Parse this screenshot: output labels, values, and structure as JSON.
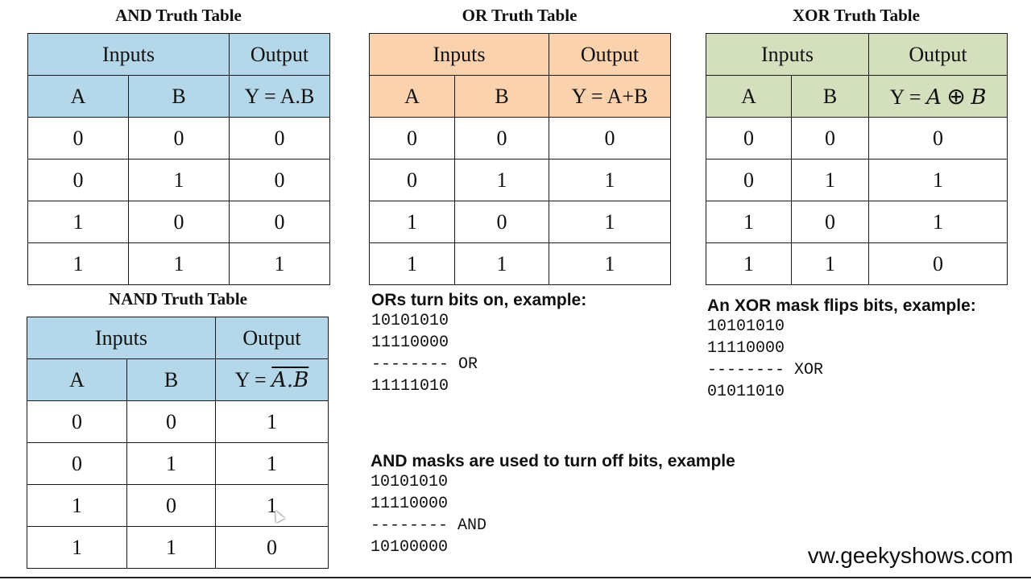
{
  "and_table": {
    "title": "AND Truth Table",
    "inputs_label": "Inputs",
    "output_label": "Output",
    "col_a": "A",
    "col_b": "B",
    "col_y": "Y = A.B",
    "rows": [
      [
        "0",
        "0",
        "0"
      ],
      [
        "0",
        "1",
        "0"
      ],
      [
        "1",
        "0",
        "0"
      ],
      [
        "1",
        "1",
        "1"
      ]
    ],
    "header_color": "#b4d8ea"
  },
  "or_table": {
    "title": "OR Truth Table",
    "inputs_label": "Inputs",
    "output_label": "Output",
    "col_a": "A",
    "col_b": "B",
    "col_y": "Y = A+B",
    "rows": [
      [
        "0",
        "0",
        "0"
      ],
      [
        "0",
        "1",
        "1"
      ],
      [
        "1",
        "0",
        "1"
      ],
      [
        "1",
        "1",
        "1"
      ]
    ],
    "header_color": "#fbd2ae"
  },
  "xor_table": {
    "title": "XOR Truth Table",
    "inputs_label": "Inputs",
    "output_label": "Output",
    "col_a": "A",
    "col_b": "B",
    "col_y_prefix": "Y = ",
    "col_y_a": "A",
    "col_y_op": "⊕",
    "col_y_b": "B",
    "rows": [
      [
        "0",
        "0",
        "0"
      ],
      [
        "0",
        "1",
        "1"
      ],
      [
        "1",
        "0",
        "1"
      ],
      [
        "1",
        "1",
        "0"
      ]
    ],
    "header_color": "#d3dfbd"
  },
  "nand_table": {
    "title": "NAND Truth Table",
    "inputs_label": "Inputs",
    "output_label": "Output",
    "col_a": "A",
    "col_b": "B",
    "col_y_prefix": "Y = ",
    "col_y_expr": "A.B",
    "rows": [
      [
        "0",
        "0",
        "1"
      ],
      [
        "0",
        "1",
        "1"
      ],
      [
        "1",
        "0",
        "1"
      ],
      [
        "1",
        "1",
        "0"
      ]
    ],
    "header_color": "#b4d8ea"
  },
  "or_example": {
    "heading": "ORs turn bits on, example:",
    "line1": "10101010",
    "line2": "11110000",
    "separator": "-------- OR",
    "result": "11111010"
  },
  "xor_example": {
    "heading": "An XOR mask flips bits, example:",
    "line1": "10101010",
    "line2": "11110000",
    "separator": "-------- XOR",
    "result": "01011010"
  },
  "and_example": {
    "heading": "AND masks are used to turn off bits, example",
    "line1": "10101010",
    "line2": "11110000",
    "separator": "-------- AND",
    "result": "10100000"
  },
  "website": "vw.geekyshows.com"
}
